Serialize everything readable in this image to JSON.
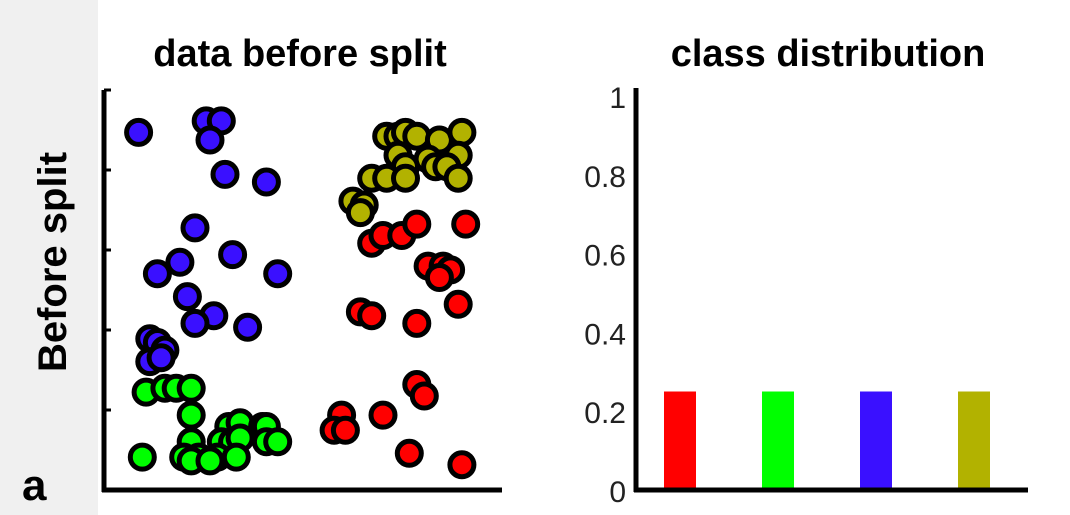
{
  "row_label": "Before split",
  "panel_letter": "a",
  "chart_data": [
    {
      "type": "scatter",
      "title": "data before split",
      "xlim": [
        0,
        100
      ],
      "ylim": [
        0,
        100
      ],
      "series": [
        {
          "color": "#3a10ff",
          "points": [
            [
              6,
              91
            ],
            [
              24,
              94
            ],
            [
              28,
              94
            ],
            [
              25,
              89
            ],
            [
              29,
              80
            ],
            [
              40,
              78
            ],
            [
              21,
              66
            ],
            [
              31,
              59
            ],
            [
              17,
              57
            ],
            [
              11,
              54
            ],
            [
              43,
              54
            ],
            [
              19,
              48
            ],
            [
              26,
              43
            ],
            [
              21,
              41
            ],
            [
              35,
              40
            ],
            [
              9,
              37
            ],
            [
              11,
              36
            ],
            [
              13,
              34
            ],
            [
              9,
              31
            ],
            [
              12,
              32
            ]
          ]
        },
        {
          "color": "#00ff00",
          "points": [
            [
              8,
              23
            ],
            [
              13,
              24
            ],
            [
              16,
              24
            ],
            [
              20,
              24
            ],
            [
              20,
              17
            ],
            [
              30,
              14
            ],
            [
              33,
              15
            ],
            [
              39,
              14
            ],
            [
              40,
              14
            ],
            [
              20,
              10
            ],
            [
              28,
              10
            ],
            [
              31,
              10
            ],
            [
              33,
              11
            ],
            [
              40,
              10
            ],
            [
              43,
              10
            ],
            [
              7,
              6
            ],
            [
              18,
              6
            ],
            [
              22,
              6
            ],
            [
              27,
              6
            ],
            [
              32,
              6
            ],
            [
              20,
              5
            ],
            [
              25,
              5
            ]
          ]
        },
        {
          "color": "#ff0000",
          "points": [
            [
              68,
              62
            ],
            [
              71,
              64
            ],
            [
              76,
              64
            ],
            [
              80,
              67
            ],
            [
              93,
              67
            ],
            [
              83,
              56
            ],
            [
              87,
              56
            ],
            [
              89,
              55
            ],
            [
              86,
              53
            ],
            [
              65,
              44
            ],
            [
              68,
              43
            ],
            [
              91,
              46
            ],
            [
              80,
              41
            ],
            [
              80,
              25
            ],
            [
              82,
              22
            ],
            [
              60,
              17
            ],
            [
              71,
              17
            ],
            [
              58,
              13
            ],
            [
              61,
              13
            ],
            [
              78,
              7
            ],
            [
              92,
              4
            ]
          ]
        },
        {
          "color": "#b2b200",
          "points": [
            [
              72,
              90
            ],
            [
              75,
              90
            ],
            [
              77,
              91
            ],
            [
              80,
              90
            ],
            [
              86,
              89
            ],
            [
              92,
              91
            ],
            [
              91,
              85
            ],
            [
              75,
              85
            ],
            [
              83,
              84
            ],
            [
              77,
              82
            ],
            [
              85,
              82
            ],
            [
              88,
              82
            ],
            [
              68,
              79
            ],
            [
              72,
              79
            ],
            [
              77,
              79
            ],
            [
              91,
              79
            ],
            [
              63,
              73
            ],
            [
              66,
              72
            ],
            [
              65,
              70
            ]
          ]
        }
      ]
    },
    {
      "type": "bar",
      "title": "class distribution",
      "categories": [
        "",
        "",
        "",
        ""
      ],
      "values": [
        0.25,
        0.25,
        0.25,
        0.25
      ],
      "colors": [
        "#ff0000",
        "#00ff00",
        "#3a10ff",
        "#b2b200"
      ],
      "ylim": [
        0,
        1
      ],
      "yticks": [
        "0",
        "0.2",
        "0.4",
        "0.6",
        "0.8",
        "1"
      ]
    }
  ]
}
